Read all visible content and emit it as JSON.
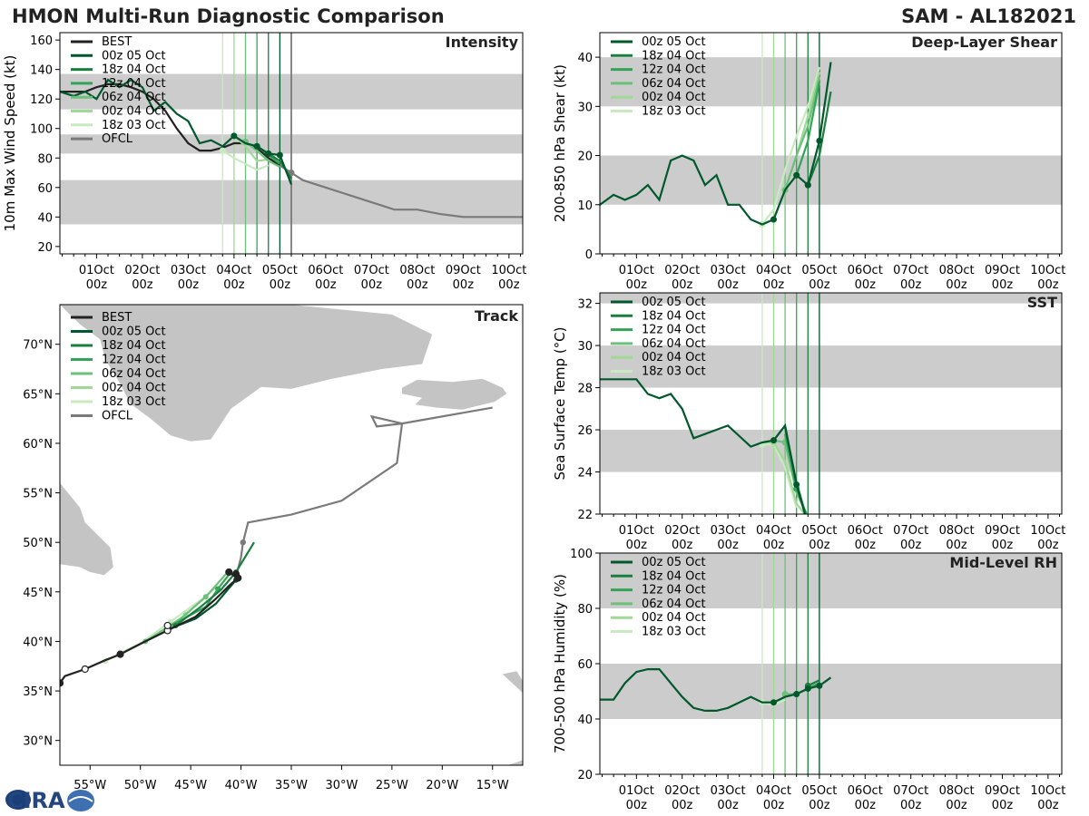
{
  "title": "HMON Multi-Run Diagnostic Comparison",
  "storm": "SAM - AL182021",
  "colors": {
    "best": "#222222",
    "ofcl": "#7a7a7a",
    "band": "#cccccc",
    "runs": [
      "#00582c",
      "#1a7f3e",
      "#33a457",
      "#6cc07a",
      "#9fd995",
      "#c8eac0"
    ]
  },
  "run_labels": [
    "00z 05 Oct",
    "18z 04 Oct",
    "12z 04 Oct",
    "06z 04 Oct",
    "00z 04 Oct",
    "18z 03 Oct"
  ],
  "best_label": "BEST",
  "ofcl_label": "OFCL",
  "time_ticks": [
    {
      "line1": "01Oct",
      "line2": "00z"
    },
    {
      "line1": "02Oct",
      "line2": "00z"
    },
    {
      "line1": "03Oct",
      "line2": "00z"
    },
    {
      "line1": "04Oct",
      "line2": "00z"
    },
    {
      "line1": "05Oct",
      "line2": "00z"
    },
    {
      "line1": "06Oct",
      "line2": "00z"
    },
    {
      "line1": "07Oct",
      "line2": "00z"
    },
    {
      "line1": "08Oct",
      "line2": "00z"
    },
    {
      "line1": "09Oct",
      "line2": "00z"
    },
    {
      "line1": "10Oct",
      "line2": "00z"
    }
  ],
  "logo": {
    "text": "CIRA"
  },
  "chart_data": [
    {
      "id": "intensity",
      "type": "line",
      "title": "Intensity",
      "ylabel": "10m Max Wind Speed (kt)",
      "xlim": [
        0.2,
        10.3
      ],
      "ylim": [
        15,
        165
      ],
      "yticks": [
        20,
        40,
        60,
        80,
        100,
        120,
        140,
        160
      ],
      "bands": [
        [
          35,
          65
        ],
        [
          83,
          96
        ],
        [
          113,
          137
        ]
      ],
      "run_init_days": [
        5.0,
        4.75,
        4.5,
        4.25,
        4.0,
        3.75
      ],
      "vline_ofcl": 5.25,
      "best": {
        "x": [
          0.2,
          0.5,
          0.75,
          1.0,
          1.25,
          1.5,
          1.75,
          2.0,
          2.25,
          2.5,
          2.75,
          3.0,
          3.25,
          3.5,
          3.75,
          4.0,
          4.25,
          4.5,
          4.75,
          5.0
        ],
        "y": [
          125,
          125,
          125,
          128,
          130,
          130,
          128,
          125,
          120,
          112,
          100,
          90,
          85,
          85,
          87,
          90,
          90,
          87,
          80,
          75
        ]
      },
      "ofcl": {
        "x": [
          5.0,
          5.25,
          5.5,
          6.0,
          6.5,
          7.0,
          7.5,
          8.0,
          8.5,
          9.0,
          9.25,
          9.5,
          10.3
        ],
        "y": [
          75,
          70,
          65,
          60,
          55,
          50,
          45,
          45,
          42,
          40,
          40,
          40,
          40
        ]
      },
      "runs": [
        {
          "x": [
            0.2,
            0.5,
            0.75,
            1.0,
            1.25,
            1.5,
            1.75,
            2.0,
            2.25,
            2.5,
            2.75,
            3.0,
            3.25,
            3.5,
            3.75,
            4.0,
            4.25,
            4.5,
            4.75,
            5.0,
            5.25
          ],
          "y": [
            125,
            122,
            125,
            120,
            133,
            128,
            133,
            128,
            112,
            118,
            110,
            105,
            90,
            92,
            88,
            95,
            90,
            88,
            83,
            82,
            62
          ]
        },
        {
          "x": [
            4.75,
            5.0,
            5.25
          ],
          "y": [
            83,
            78,
            66
          ]
        },
        {
          "x": [
            4.5,
            4.75,
            5.0
          ],
          "y": [
            88,
            82,
            76
          ]
        },
        {
          "x": [
            4.25,
            4.5,
            4.75,
            5.0
          ],
          "y": [
            91,
            85,
            78,
            74
          ]
        },
        {
          "x": [
            4.0,
            4.25,
            4.5,
            4.75
          ],
          "y": [
            95,
            88,
            78,
            79
          ]
        },
        {
          "x": [
            3.75,
            4.0,
            4.25,
            4.5,
            4.75
          ],
          "y": [
            85,
            80,
            76,
            72,
            75
          ]
        }
      ]
    },
    {
      "id": "shear",
      "type": "line",
      "title": "Deep-Layer Shear",
      "ylabel": "200-850 hPa Shear (kt)",
      "xlim": [
        0.2,
        10.3
      ],
      "ylim": [
        0,
        45
      ],
      "yticks": [
        0,
        10,
        20,
        30,
        40
      ],
      "bands": [
        [
          10,
          20
        ],
        [
          30,
          40
        ]
      ],
      "run_init_days": [
        5.0,
        4.75,
        4.5,
        4.25,
        4.0,
        3.75
      ],
      "runs": [
        {
          "x": [
            0.2,
            0.5,
            0.75,
            1.0,
            1.25,
            1.5,
            1.75,
            2.0,
            2.25,
            2.5,
            2.75,
            3.0,
            3.25,
            3.5,
            3.75,
            4.0,
            4.25,
            4.5,
            4.75,
            5.0,
            5.25
          ],
          "y": [
            10,
            12,
            11,
            12,
            14,
            11,
            19,
            20,
            19,
            14,
            16,
            10,
            10,
            7,
            6,
            7,
            13,
            16,
            14,
            23,
            39
          ]
        },
        {
          "x": [
            4.75,
            5.0,
            5.25
          ],
          "y": [
            14,
            20,
            33
          ]
        },
        {
          "x": [
            4.5,
            4.75,
            5.0
          ],
          "y": [
            16,
            23,
            35
          ]
        },
        {
          "x": [
            4.25,
            4.5,
            4.75,
            5.0
          ],
          "y": [
            13,
            20,
            26,
            36
          ]
        },
        {
          "x": [
            4.0,
            4.25,
            4.5,
            4.75,
            5.0
          ],
          "y": [
            7,
            13,
            20,
            28,
            37
          ]
        },
        {
          "x": [
            3.75,
            4.0,
            4.25,
            4.5,
            4.75,
            5.0
          ],
          "y": [
            6,
            9,
            17,
            24,
            30,
            38
          ]
        }
      ]
    },
    {
      "id": "sst",
      "type": "line",
      "title": "SST",
      "ylabel": "Sea Surface Temp (°C)",
      "xlim": [
        0.2,
        10.3
      ],
      "ylim": [
        22,
        32.5
      ],
      "yticks": [
        22,
        24,
        26,
        28,
        30,
        32
      ],
      "bands": [
        [
          24,
          26
        ],
        [
          28,
          30
        ],
        [
          32,
          33
        ]
      ],
      "run_init_days": [
        5.0,
        4.75,
        4.5,
        4.25,
        4.0,
        3.75
      ],
      "runs": [
        {
          "x": [
            0.2,
            0.5,
            0.75,
            1.0,
            1.25,
            1.5,
            1.75,
            2.0,
            2.25,
            2.5,
            2.75,
            3.0,
            3.25,
            3.5,
            3.75,
            4.0,
            4.25,
            4.5,
            4.75
          ],
          "y": [
            28.4,
            28.4,
            28.4,
            28.4,
            27.7,
            27.5,
            27.7,
            27.0,
            25.6,
            25.8,
            26.0,
            26.2,
            25.7,
            25.2,
            25.4,
            25.5,
            26.2,
            23.4,
            21.5
          ]
        },
        {
          "x": [
            4.25,
            4.5,
            4.75
          ],
          "y": [
            26.1,
            23.5,
            21.6
          ]
        },
        {
          "x": [
            4.25,
            4.5,
            4.75
          ],
          "y": [
            25.8,
            23.2,
            21.8
          ]
        },
        {
          "x": [
            4.0,
            4.25,
            4.5,
            4.75
          ],
          "y": [
            25.5,
            25.4,
            23.0,
            21.9
          ]
        },
        {
          "x": [
            3.75,
            4.0,
            4.25,
            4.5,
            4.75
          ],
          "y": [
            25.4,
            25.4,
            24.5,
            22.5,
            21.8
          ]
        },
        {
          "x": [
            3.75,
            4.0,
            4.25,
            4.5
          ],
          "y": [
            25.3,
            25.3,
            24.2,
            22.3
          ]
        }
      ]
    },
    {
      "id": "rh",
      "type": "line",
      "title": "Mid-Level RH",
      "ylabel": "700-500 hPa Humidity (%)",
      "xlim": [
        0.2,
        10.3
      ],
      "ylim": [
        20,
        100
      ],
      "yticks": [
        20,
        40,
        60,
        80,
        100
      ],
      "bands": [
        [
          40,
          60
        ],
        [
          80,
          100
        ]
      ],
      "run_init_days": [
        5.0,
        4.75,
        4.5,
        4.25,
        4.0,
        3.75
      ],
      "runs": [
        {
          "x": [
            0.2,
            0.5,
            0.75,
            1.0,
            1.25,
            1.5,
            1.75,
            2.0,
            2.25,
            2.5,
            2.75,
            3.0,
            3.25,
            3.5,
            3.75,
            4.0,
            4.25,
            4.5,
            4.75,
            5.0,
            5.25
          ],
          "y": [
            47,
            47,
            53,
            57,
            58,
            58,
            53,
            48,
            44,
            43,
            43,
            44,
            46,
            48,
            46,
            46,
            48,
            49,
            51,
            52,
            55
          ]
        },
        {
          "x": [
            4.75,
            5.0
          ],
          "y": [
            52,
            54
          ]
        },
        {
          "x": [
            4.5,
            4.75,
            5.0
          ],
          "y": [
            49,
            51,
            53
          ]
        },
        {
          "x": [
            4.25,
            4.5,
            4.75
          ],
          "y": [
            49,
            49,
            51
          ]
        },
        {
          "x": [
            4.0,
            4.25,
            4.5
          ],
          "y": [
            46,
            48,
            49
          ]
        },
        {
          "x": [
            3.75,
            4.0,
            4.25
          ],
          "y": [
            46,
            45,
            47
          ]
        }
      ]
    },
    {
      "id": "track",
      "type": "scatter",
      "title": "Track",
      "xlim": [
        -58,
        -12
      ],
      "ylim": [
        27.5,
        74
      ],
      "xticks": [
        -55,
        -50,
        -45,
        -40,
        -35,
        -30,
        -25,
        -20,
        -15
      ],
      "xtick_labels": [
        "55°W",
        "50°W",
        "45°W",
        "40°W",
        "35°W",
        "30°W",
        "25°W",
        "20°W",
        "15°W"
      ],
      "yticks": [
        30,
        35,
        40,
        45,
        50,
        55,
        60,
        65,
        70
      ],
      "ytick_labels": [
        "30°N",
        "35°N",
        "40°N",
        "45°N",
        "50°N",
        "55°N",
        "60°N",
        "65°N",
        "70°N"
      ],
      "best": {
        "lon": [
          -58,
          -57.5,
          -55.5,
          -53.5,
          -52,
          -49.5,
          -47.3,
          -44.5,
          -42.5,
          -41,
          -40.3,
          -41.2,
          -40.5
        ],
        "lat": [
          35.8,
          36.5,
          37.2,
          38.1,
          38.7,
          40.0,
          41.1,
          42.5,
          44.3,
          45.8,
          46.4,
          47.0,
          46.5
        ]
      },
      "best_markers": {
        "lon": [
          -58,
          -55.5,
          -52,
          -47.3,
          -47.3,
          -40.3,
          -41.2,
          -40.5
        ],
        "lat": [
          35.8,
          37.2,
          38.7,
          41.1,
          41.6,
          46.4,
          47.0,
          46.8
        ],
        "filled": [
          true,
          false,
          true,
          false,
          false,
          true,
          true,
          true
        ]
      },
      "ofcl": {
        "lon": [
          -40.5,
          -40,
          -39.8,
          -39.3,
          -35,
          -30,
          -24.5,
          -24,
          -27,
          -26.5,
          -24,
          -15
        ],
        "lat": [
          46.5,
          48.5,
          50.0,
          52.0,
          52.8,
          54.2,
          58.0,
          62.0,
          62.7,
          61.7,
          62.0,
          63.6
        ]
      },
      "runs": [
        {
          "lon": [
            -47.3,
            -44.5,
            -42.5,
            -40.5,
            -40.0
          ],
          "lat": [
            41.2,
            42.3,
            43.8,
            46.2,
            46.5
          ]
        },
        {
          "lon": [
            -46.5,
            -44,
            -42,
            -40.5,
            -38.7
          ],
          "lat": [
            41.6,
            43.5,
            45.2,
            47.0,
            50.0
          ]
        },
        {
          "lon": [
            -47.3,
            -43.5,
            -42.3,
            -41
          ],
          "lat": [
            41.4,
            43.5,
            45.3,
            47.0
          ]
        },
        {
          "lon": [
            -49.5,
            -46,
            -43.5,
            -41.5
          ],
          "lat": [
            40.0,
            42.3,
            44.5,
            46.8
          ]
        },
        {
          "lon": [
            -52,
            -48.5,
            -45.5,
            -42.5
          ],
          "lat": [
            38.8,
            40.5,
            42.7,
            45.5
          ]
        },
        {
          "lon": [
            -53.5,
            -50,
            -47,
            -44
          ],
          "lat": [
            38.0,
            39.8,
            42.0,
            44.2
          ]
        }
      ]
    }
  ]
}
